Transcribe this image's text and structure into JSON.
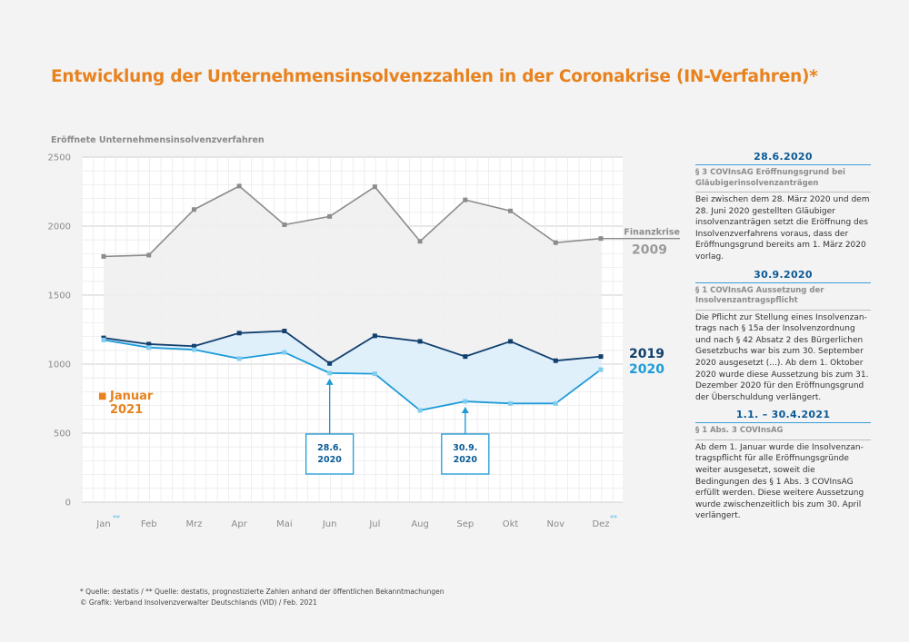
{
  "title": "Entwicklung der Unternehmensinsolvenzzahlen in der Coronakrise (IN-Verfahren)*",
  "y_axis_title": "Eröffnete Unternehmensinsolvenzverfahren",
  "chart_data": {
    "type": "line",
    "categories": [
      "Jan",
      "Feb",
      "Mrz",
      "Apr",
      "Mai",
      "Jun",
      "Jul",
      "Aug",
      "Sep",
      "Okt",
      "Nov",
      "Dez"
    ],
    "category_markers": {
      "Jan": "**",
      "Dez": "**"
    },
    "ylim": [
      0,
      2500
    ],
    "yticks": [
      0,
      500,
      1000,
      1500,
      2000,
      2500
    ],
    "grid": true,
    "series": [
      {
        "name": "2009",
        "label_prefix": "Finanzkrise",
        "color": "#8c8c8c",
        "values": [
          1780,
          1790,
          2120,
          2290,
          2010,
          2070,
          2285,
          1890,
          2190,
          2110,
          1880,
          1910
        ]
      },
      {
        "name": "2019",
        "color": "#123f6e",
        "values": [
          1190,
          1145,
          1130,
          1225,
          1240,
          1005,
          1205,
          1165,
          1055,
          1165,
          1025,
          1055
        ]
      },
      {
        "name": "2020",
        "color": "#1e9bd7",
        "values": [
          1175,
          1120,
          1105,
          1040,
          1085,
          935,
          930,
          665,
          730,
          715,
          715,
          960
        ]
      }
    ],
    "marker_labels": [
      {
        "text": "28.6.\n2020",
        "category": "Jun",
        "value": 935
      },
      {
        "text": "30.9.\n2020",
        "category": "Sep",
        "value": 730
      }
    ],
    "legend_extra": {
      "symbol": "■",
      "line1": "Januar",
      "line2": "2021",
      "color": "#e8821e"
    }
  },
  "panel": [
    {
      "date": "28.6.2020",
      "sub": "§ 3 COVInsAG Eröffnungsgrund bei Gläubigerinsolvenzanträgen",
      "text": "Bei zwischen dem 28. März 2020 und dem 28. Juni 2020 gestellten Gläubiger insolvenz­anträgen setzt die Eröffnung des Insolvenz­verfahrens voraus, dass der Eröffnungsgrund bereits am 1. März 2020 vorlag."
    },
    {
      "date": "30.9.2020",
      "sub": "§ 1 COVInsAG Aussetzung der Insolvenz­antragspflicht",
      "text": "Die Pflicht zur Stellung eines Insolvenzan­trags nach § 15a der Insolvenzordnung und nach § 42 Absatz 2 des Bürgerlichen Gesetzbuchs war bis zum 30. September 2020 ausgesetzt (...). Ab dem 1. Oktober 2020 wurde diese Aussetzung bis zum 31. Dezember 2020 für den Eröffnungs­grund der Überschuldung verlängert."
    },
    {
      "date": "1.1. – 30.4.2021",
      "sub": "§ 1 Abs. 3 COVInsAG",
      "text": "Ab dem 1. Januar wurde die Insolvenzan­tragspflicht für alle Eröffnungsgründe weiter ausgesetzt, soweit die Bedingungen des § 1 Abs. 3 COVInsAG erfüllt werden. Diese weitere Aussetzung wurde zwischenzeitlich bis zum 30. April verlängert."
    }
  ],
  "footnotes": {
    "line1": "* Quelle: destatis / ** Quelle: destatis, prognostizierte Zahlen anhand der öffentlichen Bekanntmachungen",
    "line2": "© Grafik: Verband Insolvenzverwalter Deutschlands (VID) / Feb. 2021"
  }
}
